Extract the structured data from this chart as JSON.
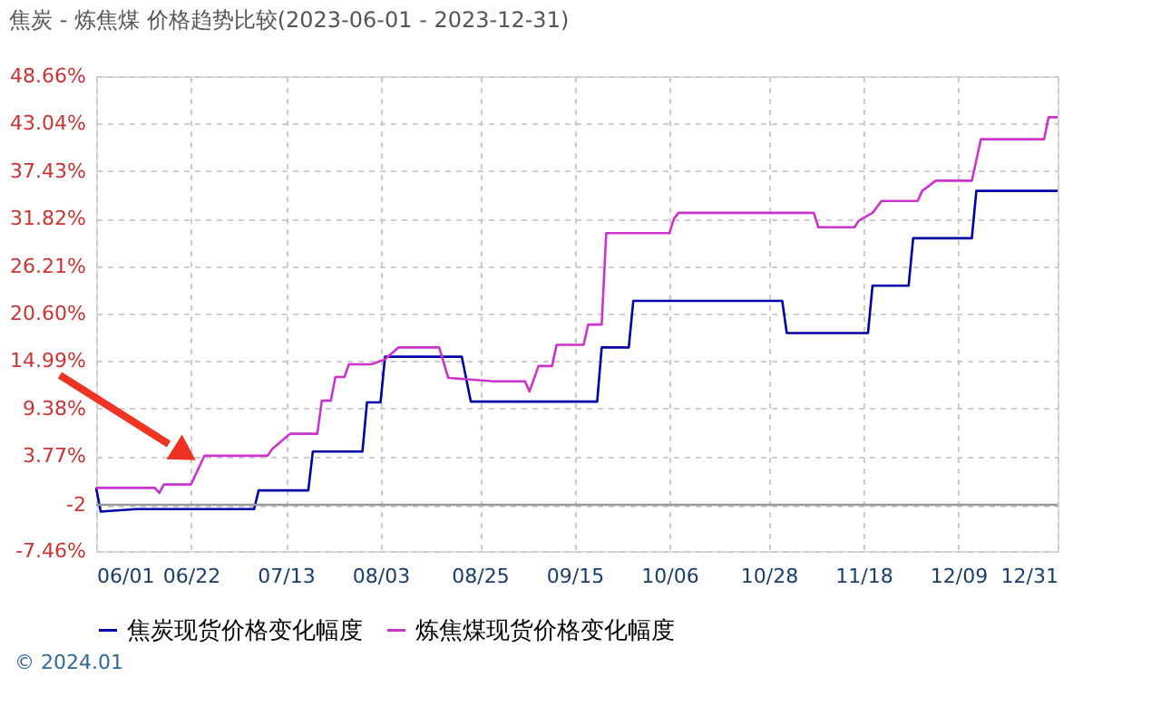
{
  "chart_data": {
    "type": "line",
    "title": "焦炭 - 炼焦煤 价格趋势比较(2023-06-01 - 2023-12-31)",
    "series": [
      {
        "name": "焦炭现货价格变化幅度",
        "color": "#0000aa",
        "x": [
          "2023-06-01",
          "2023-06-02",
          "2023-06-10",
          "2023-07-06",
          "2023-07-07",
          "2023-07-18",
          "2023-07-19",
          "2023-07-30",
          "2023-07-31",
          "2023-08-03",
          "2023-08-04",
          "2023-08-21",
          "2023-08-23",
          "2023-09-20",
          "2023-09-21",
          "2023-09-27",
          "2023-09-28",
          "2023-10-31",
          "2023-11-01",
          "2023-11-19",
          "2023-11-20",
          "2023-11-28",
          "2023-11-29",
          "2023-12-12",
          "2023-12-13",
          "2023-12-31"
        ],
        "values": [
          0,
          -2.8,
          -2.5,
          -2.5,
          -0.3,
          -0.3,
          4.3,
          4.3,
          10.1,
          10.1,
          15.5,
          15.5,
          10.2,
          10.2,
          16.6,
          16.6,
          22.1,
          22.1,
          18.3,
          18.3,
          23.9,
          23.9,
          29.5,
          29.5,
          35.1,
          35.1
        ]
      },
      {
        "name": "炼焦煤现货价格变化幅度",
        "color": "#cc33cc",
        "x": [
          "2023-06-01",
          "2023-06-14",
          "2023-06-15",
          "2023-06-16",
          "2023-06-22",
          "2023-06-25",
          "2023-07-09",
          "2023-07-10",
          "2023-07-14",
          "2023-07-20",
          "2023-07-21",
          "2023-07-23",
          "2023-07-24",
          "2023-07-26",
          "2023-07-27",
          "2023-08-01",
          "2023-08-04",
          "2023-08-07",
          "2023-08-16",
          "2023-08-18",
          "2023-08-28",
          "2023-09-04",
          "2023-09-05",
          "2023-09-07",
          "2023-09-10",
          "2023-09-11",
          "2023-09-17",
          "2023-09-18",
          "2023-09-21",
          "2023-09-22",
          "2023-10-06",
          "2023-10-07",
          "2023-10-08",
          "2023-11-07",
          "2023-11-08",
          "2023-11-16",
          "2023-11-17",
          "2023-11-20",
          "2023-11-22",
          "2023-11-30",
          "2023-12-01",
          "2023-12-04",
          "2023-12-12",
          "2023-12-14",
          "2023-12-28",
          "2023-12-29",
          "2023-12-31"
        ],
        "values": [
          0,
          0,
          -0.6,
          0.4,
          0.4,
          3.8,
          3.8,
          4.6,
          6.4,
          6.4,
          10.3,
          10.3,
          13.1,
          13.1,
          14.6,
          14.6,
          15.2,
          16.6,
          16.6,
          13.0,
          12.6,
          12.6,
          11.4,
          14.4,
          14.4,
          16.9,
          16.9,
          19.3,
          19.3,
          30.1,
          30.1,
          31.8,
          32.5,
          32.5,
          30.8,
          30.8,
          31.6,
          32.5,
          33.9,
          33.9,
          35.1,
          36.3,
          36.3,
          41.2,
          41.2,
          43.8,
          43.8
        ]
      }
    ],
    "xlim": [
      "2023-06-01",
      "2023-12-31"
    ],
    "xticks": [
      {
        "value": "2023-06-01",
        "label": "06/01"
      },
      {
        "value": "2023-06-22",
        "label": "06/22"
      },
      {
        "value": "2023-07-13",
        "label": "07/13"
      },
      {
        "value": "2023-08-03",
        "label": "08/03"
      },
      {
        "value": "2023-08-25",
        "label": "08/25"
      },
      {
        "value": "2023-09-15",
        "label": "09/15"
      },
      {
        "value": "2023-10-06",
        "label": "10/06"
      },
      {
        "value": "2023-10-28",
        "label": "10/28"
      },
      {
        "value": "2023-11-18",
        "label": "11/18"
      },
      {
        "value": "2023-12-09",
        "label": "12/09"
      },
      {
        "value": "2023-12-31",
        "label": "12/31"
      }
    ],
    "ylim": [
      -7.46,
      48.66
    ],
    "yticks": [
      {
        "value": -7.46,
        "label": "-7.46%"
      },
      -2,
      {
        "value": 3.77,
        "label": "3.77%"
      },
      {
        "value": 9.38,
        "label": "9.38%"
      },
      {
        "value": 14.99,
        "label": "14.99%"
      },
      {
        "value": 20.6,
        "label": "20.60%"
      },
      {
        "value": 26.21,
        "label": "26.21%"
      },
      {
        "value": 31.82,
        "label": "31.82%"
      },
      {
        "value": 37.43,
        "label": "37.43%"
      },
      {
        "value": 43.04,
        "label": "43.04%"
      },
      {
        "value": 48.66,
        "label": "48.66%"
      }
    ],
    "ref_lines": [
      {
        "axis": "y",
        "value": -2,
        "color": "#999999"
      }
    ],
    "annotations": [
      "© 2024.01"
    ],
    "grid": true,
    "legend": "bottom",
    "marker": "none",
    "line_style": "solid"
  }
}
